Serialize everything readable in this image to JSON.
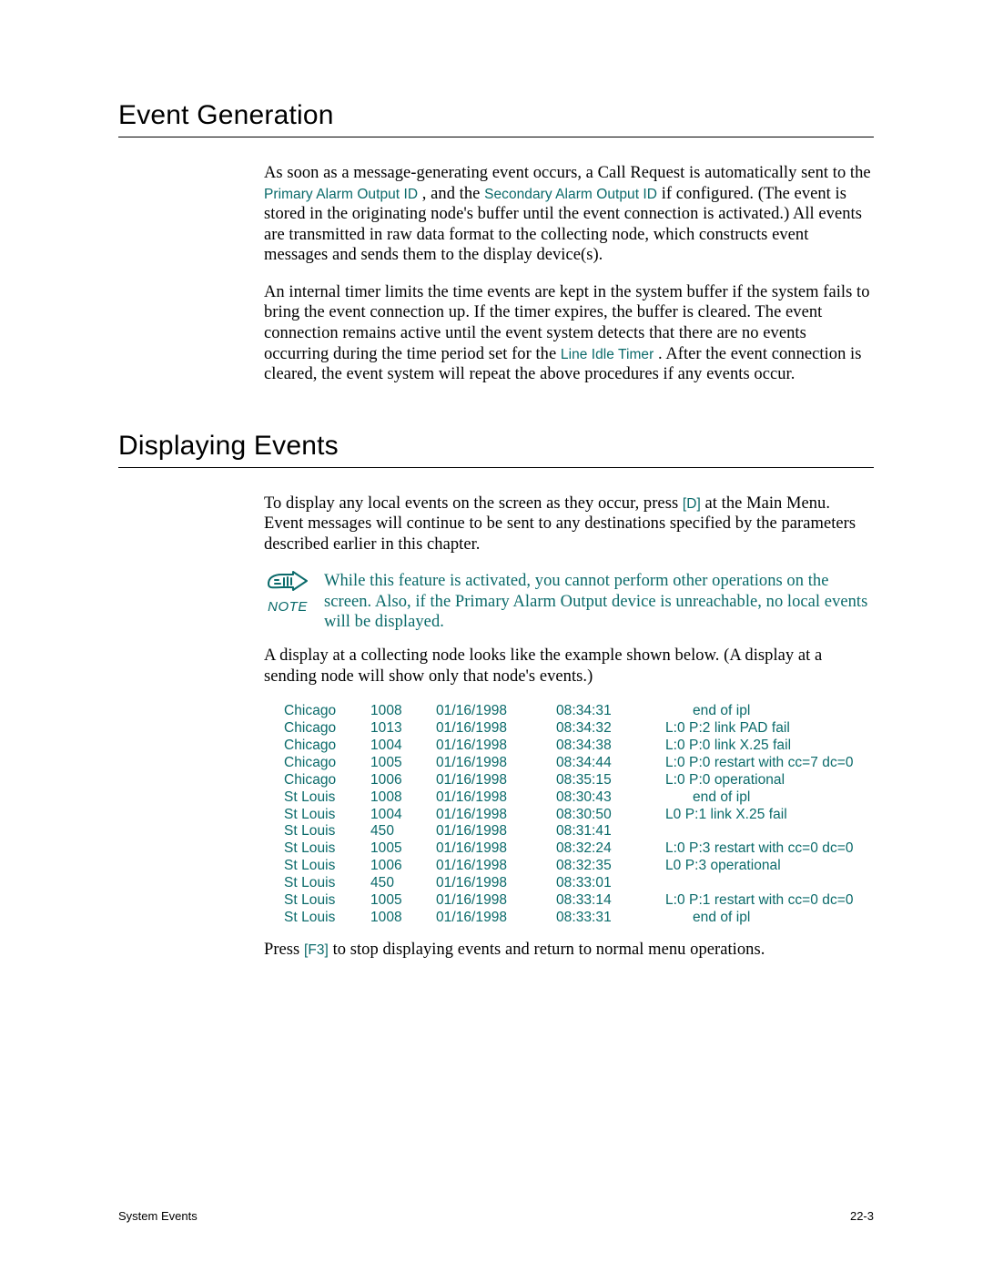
{
  "section1": {
    "heading": "Event Generation",
    "para1_a": "As soon as a message-generating event occurs, a Call Request is automatically sent to the ",
    "para1_link1": "Primary Alarm Output ID",
    "para1_b": " , and the ",
    "para1_link2": "Secondary Alarm Output ID",
    "para1_c": "  if configured. (The event is stored in the originating node's buffer until the event connection is activated.) All events are transmitted in raw data format to the collecting node, which constructs event messages and sends them to the display device(s).",
    "para2_a": "An internal timer limits the time events are kept in the system buffer if the system fails to bring the event connection up. If the timer expires, the buffer is cleared. The event connection remains active until the event system detects that there are no events occurring during the time period set for the ",
    "para2_link": "Line Idle Timer",
    "para2_b": " . After the event connection is cleared, the event system will repeat the above procedures if any events occur."
  },
  "section2": {
    "heading": "Displaying Events",
    "para1_a": "To display any local events on the screen as they occur, press ",
    "para1_key": "[D]",
    "para1_b": " at the Main Menu. Event messages will continue to be sent to any destinations specified by the param­eters described earlier in this chapter.",
    "note_label": "NOTE",
    "note_text": "While this feature is activated, you cannot perform other operations on the screen. Also, if the Primary Alarm Output device is unreachable, no local events will be displayed.",
    "para2": "A display at a collecting node looks like the example shown below. (A display at a sending node will show only that node's events.)",
    "events": [
      {
        "loc": "Chicago",
        "code": "1008",
        "date": "01/16/1998",
        "time": "08:34:31",
        "msg": "end of ipl",
        "pad": true
      },
      {
        "loc": "Chicago",
        "code": "1013",
        "date": "01/16/1998",
        "time": "08:34:32",
        "msg": "L:0 P:2 link PAD fail",
        "pad": false
      },
      {
        "loc": "Chicago",
        "code": "1004",
        "date": "01/16/1998",
        "time": "08:34:38",
        "msg": "L:0 P:0 link X.25 fail",
        "pad": false
      },
      {
        "loc": "Chicago",
        "code": "1005",
        "date": "01/16/1998",
        "time": "08:34:44",
        "msg": "L:0 P:0 restart with cc=7 dc=0",
        "pad": false
      },
      {
        "loc": "Chicago",
        "code": "1006",
        "date": "01/16/1998",
        "time": "08:35:15",
        "msg": "L:0 P:0 operational",
        "pad": false
      },
      {
        "loc": "St Louis",
        "code": "1008",
        "date": "01/16/1998",
        "time": "08:30:43",
        "msg": "end of ipl",
        "pad": true
      },
      {
        "loc": "St Louis",
        "code": "1004",
        "date": "01/16/1998",
        "time": "08:30:50",
        "msg": "L0 P:1 link X.25 fail",
        "pad": false
      },
      {
        "loc": "St Louis",
        "code": "450",
        "date": "01/16/1998",
        "time": "08:31:41",
        "msg": "",
        "pad": false
      },
      {
        "loc": "St Louis",
        "code": "1005",
        "date": "01/16/1998",
        "time": "08:32:24",
        "msg": "L:0 P:3 restart with cc=0 dc=0",
        "pad": false
      },
      {
        "loc": "St Louis",
        "code": "1006",
        "date": "01/16/1998",
        "time": "08:32:35",
        "msg": "L0 P:3 operational",
        "pad": false
      },
      {
        "loc": "St Louis",
        "code": "450",
        "date": "01/16/1998",
        "time": "08:33:01",
        "msg": "",
        "pad": false
      },
      {
        "loc": "St Louis",
        "code": "1005",
        "date": "01/16/1998",
        "time": "08:33:14",
        "msg": "L:0 P:1 restart with cc=0 dc=0",
        "pad": false
      },
      {
        "loc": "St Louis",
        "code": "1008",
        "date": "01/16/1998",
        "time": "08:33:31",
        "msg": "end of ipl",
        "pad": true
      }
    ],
    "para3_a": "Press ",
    "para3_key": "[F3]",
    "para3_b": " to stop displaying events and return to normal menu operations."
  },
  "footer": {
    "left": "System Events",
    "right": "22-3"
  },
  "colors": {
    "link": "#0a6a6a",
    "text": "#000000",
    "bg": "#ffffff"
  }
}
